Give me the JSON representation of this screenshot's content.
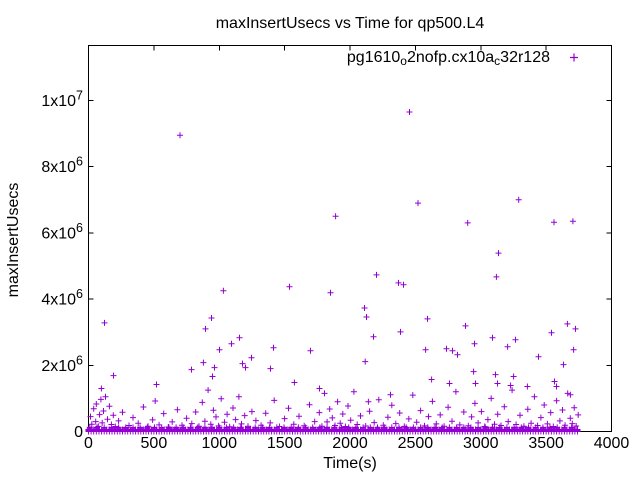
{
  "chart_data": {
    "type": "scatter",
    "title": "maxInsertUsecs vs Time for qp500.L4",
    "xlabel": "Time(s)",
    "ylabel": "maxInsertUsecs",
    "xlim": [
      0,
      4000
    ],
    "ylim": [
      0,
      11660000
    ],
    "grid": false,
    "marker": "plus",
    "marker_color": "#9400d3",
    "border_color": "#000000",
    "background_color": "#ffffff",
    "legend": {
      "position": "top-right-inside",
      "label": "pg1610o2nofp.cx10ac32r128",
      "segments": [
        {
          "text": "pg1610"
        },
        {
          "text": "o",
          "sub": true
        },
        {
          "text": "2nofp.cx10a"
        },
        {
          "text": "c",
          "sub": true
        },
        {
          "text": "32r128"
        }
      ]
    },
    "xticks": [
      0,
      500,
      1000,
      1500,
      2000,
      2500,
      3000,
      3500,
      4000
    ],
    "yticks": [
      {
        "value": 0,
        "base": "0",
        "exp": ""
      },
      {
        "value": 2000000,
        "base": "2x10",
        "exp": "6"
      },
      {
        "value": 4000000,
        "base": "4x10",
        "exp": "6"
      },
      {
        "value": 6000000,
        "base": "6x10",
        "exp": "6"
      },
      {
        "value": 8000000,
        "base": "8x10",
        "exp": "6"
      },
      {
        "value": 10000000,
        "base": "1x10",
        "exp": "7"
      }
    ],
    "bands": [
      {
        "x_min": 0,
        "x_max": 3748,
        "step": 20,
        "y_values": [
          0,
          30000,
          60000
        ]
      },
      {
        "x_min": 10,
        "x_max": 3742,
        "step": 55,
        "y_values": [
          95000,
          125000
        ]
      }
    ],
    "points": [
      [
        15,
        450000
      ],
      [
        25,
        220000
      ],
      [
        40,
        690000
      ],
      [
        55,
        300000
      ],
      [
        60,
        830000
      ],
      [
        75,
        155000
      ],
      [
        85,
        510000
      ],
      [
        95,
        970000
      ],
      [
        99,
        1300000
      ],
      [
        105,
        260000
      ],
      [
        115,
        620000
      ],
      [
        122,
        3280000
      ],
      [
        130,
        1050000
      ],
      [
        145,
        370000
      ],
      [
        160,
        760000
      ],
      [
        175,
        210000
      ],
      [
        190,
        490000
      ],
      [
        191,
        1690000
      ],
      [
        205,
        150000
      ],
      [
        230,
        320000
      ],
      [
        260,
        580000
      ],
      [
        310,
        180000
      ],
      [
        340,
        420000
      ],
      [
        380,
        250000
      ],
      [
        420,
        740000
      ],
      [
        455,
        160000
      ],
      [
        490,
        350000
      ],
      [
        510,
        920000
      ],
      [
        520,
        1420000
      ],
      [
        540,
        200000
      ],
      [
        575,
        540000
      ],
      [
        610,
        135000
      ],
      [
        640,
        290000
      ],
      [
        680,
        660000
      ],
      [
        700,
        8950000
      ],
      [
        715,
        190000
      ],
      [
        750,
        400000
      ],
      [
        788,
        1870000
      ],
      [
        790,
        240000
      ],
      [
        820,
        590000
      ],
      [
        845,
        160000
      ],
      [
        870,
        880000
      ],
      [
        879,
        2080000
      ],
      [
        890,
        310000
      ],
      [
        895,
        3100000
      ],
      [
        915,
        1250000
      ],
      [
        935,
        220000
      ],
      [
        941,
        3430000
      ],
      [
        948,
        1660000
      ],
      [
        955,
        640000
      ],
      [
        964,
        1930000
      ],
      [
        975,
        440000
      ],
      [
        995,
        170000
      ],
      [
        1002,
        2470000
      ],
      [
        1015,
        990000
      ],
      [
        1032,
        4250000
      ],
      [
        1040,
        280000
      ],
      [
        1060,
        520000
      ],
      [
        1080,
        145000
      ],
      [
        1094,
        2650000
      ],
      [
        1105,
        710000
      ],
      [
        1125,
        360000
      ],
      [
        1150,
        1050000
      ],
      [
        1155,
        2830000
      ],
      [
        1170,
        230000
      ],
      [
        1178,
        2050000
      ],
      [
        1195,
        480000
      ],
      [
        1201,
        1930000
      ],
      [
        1220,
        160000
      ],
      [
        1247,
        2230000
      ],
      [
        1250,
        600000
      ],
      [
        1280,
        330000
      ],
      [
        1320,
        190000
      ],
      [
        1355,
        550000
      ],
      [
        1390,
        260000
      ],
      [
        1392,
        1900000
      ],
      [
        1415,
        2530000
      ],
      [
        1420,
        940000
      ],
      [
        1460,
        150000
      ],
      [
        1500,
        390000
      ],
      [
        1530,
        700000
      ],
      [
        1537,
        4370000
      ],
      [
        1570,
        220000
      ],
      [
        1575,
        1480000
      ],
      [
        1610,
        460000
      ],
      [
        1650,
        175000
      ],
      [
        1690,
        810000
      ],
      [
        1698,
        2440000
      ],
      [
        1730,
        300000
      ],
      [
        1765,
        570000
      ],
      [
        1767,
        1300000
      ],
      [
        1785,
        160000
      ],
      [
        1805,
        1150000
      ],
      [
        1825,
        290000
      ],
      [
        1845,
        680000
      ],
      [
        1851,
        4190000
      ],
      [
        1865,
        410000
      ],
      [
        1885,
        180000
      ],
      [
        1890,
        6500000
      ],
      [
        1905,
        900000
      ],
      [
        1925,
        250000
      ],
      [
        1945,
        530000
      ],
      [
        1965,
        150000
      ],
      [
        1985,
        770000
      ],
      [
        2005,
        340000
      ],
      [
        2030,
        1200000
      ],
      [
        2055,
        210000
      ],
      [
        2080,
        470000
      ],
      [
        2111,
        3730000
      ],
      [
        2116,
        2110000
      ],
      [
        2120,
        165000
      ],
      [
        2126,
        3460000
      ],
      [
        2141,
        900000
      ],
      [
        2150,
        610000
      ],
      [
        2180,
        2860000
      ],
      [
        2185,
        270000
      ],
      [
        2203,
        4730000
      ],
      [
        2220,
        960000
      ],
      [
        2255,
        190000
      ],
      [
        2290,
        430000
      ],
      [
        2310,
        1110000
      ],
      [
        2320,
        790000
      ],
      [
        2350,
        240000
      ],
      [
        2371,
        4490000
      ],
      [
        2380,
        560000
      ],
      [
        2386,
        3010000
      ],
      [
        2409,
        4430000
      ],
      [
        2415,
        155000
      ],
      [
        2450,
        380000
      ],
      [
        2455,
        9650000
      ],
      [
        2480,
        1100000
      ],
      [
        2510,
        280000
      ],
      [
        2520,
        6900000
      ],
      [
        2540,
        630000
      ],
      [
        2570,
        170000
      ],
      [
        2578,
        2470000
      ],
      [
        2593,
        3400000
      ],
      [
        2600,
        450000
      ],
      [
        2624,
        1570000
      ],
      [
        2630,
        910000
      ],
      [
        2660,
        230000
      ],
      [
        2690,
        500000
      ],
      [
        2720,
        160000
      ],
      [
        2738,
        2500000
      ],
      [
        2750,
        730000
      ],
      [
        2761,
        1450000
      ],
      [
        2780,
        310000
      ],
      [
        2784,
        2440000
      ],
      [
        2810,
        1200000
      ],
      [
        2822,
        2320000
      ],
      [
        2840,
        200000
      ],
      [
        2870,
        590000
      ],
      [
        2883,
        3190000
      ],
      [
        2900,
        6300000
      ],
      [
        2905,
        175000
      ],
      [
        2930,
        440000
      ],
      [
        2945,
        1810000
      ],
      [
        2952,
        2650000
      ],
      [
        2955,
        850000
      ],
      [
        2960,
        1450000
      ],
      [
        2980,
        260000
      ],
      [
        3005,
        600000
      ],
      [
        3030,
        150000
      ],
      [
        3055,
        360000
      ],
      [
        3080,
        1000000
      ],
      [
        3090,
        2830000
      ],
      [
        3105,
        220000
      ],
      [
        3113,
        1720000
      ],
      [
        3120,
        4670000
      ],
      [
        3128,
        1450000
      ],
      [
        3130,
        520000
      ],
      [
        3136,
        5390000
      ],
      [
        3155,
        180000
      ],
      [
        3180,
        750000
      ],
      [
        3205,
        2560000
      ],
      [
        3210,
        300000
      ],
      [
        3228,
        1390000
      ],
      [
        3240,
        1250000
      ],
      [
        3251,
        1660000
      ],
      [
        3266,
        2770000
      ],
      [
        3270,
        210000
      ],
      [
        3290,
        7000000
      ],
      [
        3300,
        490000
      ],
      [
        3330,
        160000
      ],
      [
        3357,
        1360000
      ],
      [
        3360,
        670000
      ],
      [
        3385,
        250000
      ],
      [
        3410,
        1050000
      ],
      [
        3435,
        180000
      ],
      [
        3442,
        2260000
      ],
      [
        3460,
        420000
      ],
      [
        3485,
        800000
      ],
      [
        3510,
        230000
      ],
      [
        3535,
        570000
      ],
      [
        3541,
        2980000
      ],
      [
        3555,
        150000
      ],
      [
        3560,
        6320000
      ],
      [
        3564,
        1510000
      ],
      [
        3579,
        1360000
      ],
      [
        3580,
        930000
      ],
      [
        3605,
        320000
      ],
      [
        3625,
        650000
      ],
      [
        3633,
        2020000
      ],
      [
        3645,
        190000
      ],
      [
        3663,
        3250000
      ],
      [
        3665,
        1150000
      ],
      [
        3685,
        400000
      ],
      [
        3686,
        1110000
      ],
      [
        3700,
        240000
      ],
      [
        3705,
        6350000
      ],
      [
        3710,
        2470000
      ],
      [
        3715,
        720000
      ],
      [
        3725,
        3100000
      ],
      [
        3730,
        165000
      ],
      [
        3745,
        500000
      ]
    ]
  }
}
